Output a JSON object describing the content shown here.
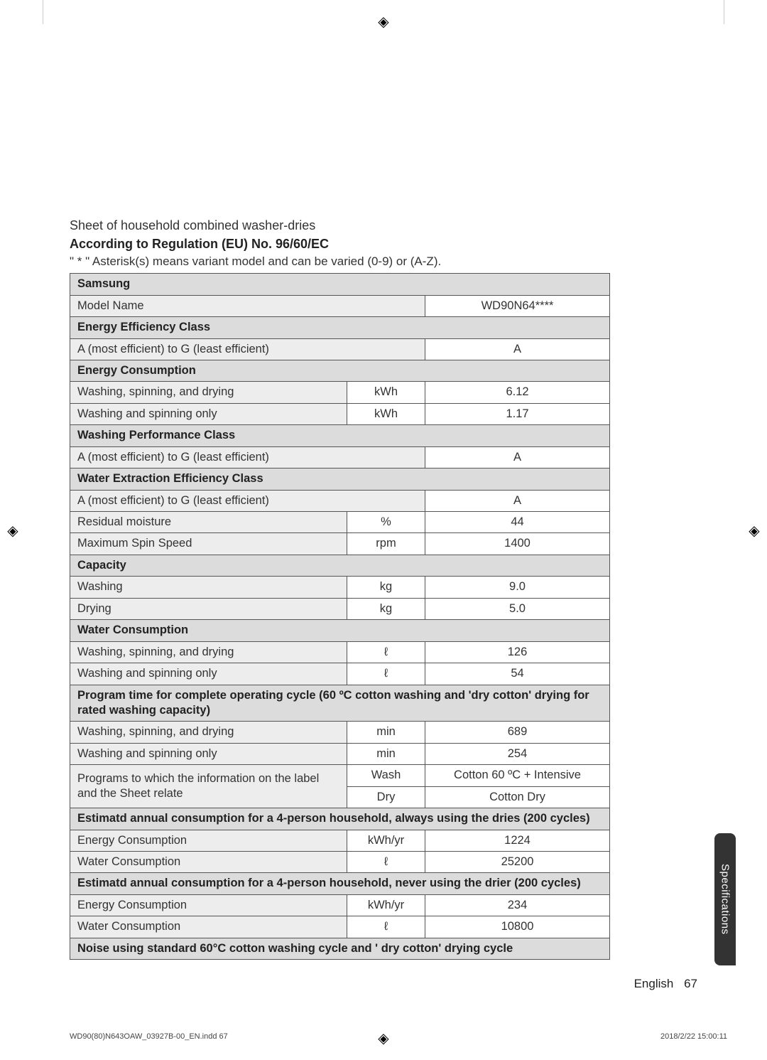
{
  "intro": {
    "line1": "Sheet of household combined washer-dries",
    "line2_bold": "According to Regulation (EU) No. 96/60/EC",
    "asterisk_note": "\" * \" Asterisk(s) means variant model and can be varied (0-9) or (A-Z)."
  },
  "table": {
    "brand": "Samsung",
    "rows": [
      {
        "type": "row2",
        "label": "Model Name",
        "value": "WD90N64****"
      },
      {
        "type": "section",
        "label": "Energy Efficiency Class"
      },
      {
        "type": "row2",
        "label": "A (most efficient) to G (least efficient)",
        "value": "A"
      },
      {
        "type": "section",
        "label": "Energy Consumption"
      },
      {
        "type": "row3",
        "label": "Washing, spinning, and drying",
        "unit": "kWh",
        "value": "6.12"
      },
      {
        "type": "row3",
        "label": "Washing and spinning only",
        "unit": "kWh",
        "value": "1.17"
      },
      {
        "type": "section",
        "label": "Washing Performance Class"
      },
      {
        "type": "row2",
        "label": "A (most efficient) to G (least efficient)",
        "value": "A"
      },
      {
        "type": "section",
        "label": "Water Extraction Efficiency Class"
      },
      {
        "type": "row2",
        "label": "A (most efficient) to G (least efficient)",
        "value": "A"
      },
      {
        "type": "row3",
        "label": "Residual moisture",
        "unit": "%",
        "value": "44"
      },
      {
        "type": "row3",
        "label": "Maximum Spin Speed",
        "unit": "rpm",
        "value": "1400"
      },
      {
        "type": "section",
        "label": "Capacity"
      },
      {
        "type": "row3",
        "label": "Washing",
        "unit": "kg",
        "value": "9.0"
      },
      {
        "type": "row3",
        "label": "Drying",
        "unit": "kg",
        "value": "5.0"
      },
      {
        "type": "section",
        "label": "Water Consumption"
      },
      {
        "type": "row3",
        "label": "Washing, spinning, and drying",
        "unit": "ℓ",
        "value": "126"
      },
      {
        "type": "row3",
        "label": "Washing and spinning only",
        "unit": "ℓ",
        "value": "54"
      },
      {
        "type": "section",
        "label": "Program time for complete operating cycle (60 ºC cotton washing and 'dry cotton' drying for rated washing capacity)"
      },
      {
        "type": "row3",
        "label": "Washing, spinning, and drying",
        "unit": "min",
        "value": "689"
      },
      {
        "type": "row3",
        "label": "Washing and spinning only",
        "unit": "min",
        "value": "254"
      },
      {
        "type": "row3_span_top",
        "label": "Programs to which the information on the label and the Sheet relate",
        "unit": "Wash",
        "value": "Cotton 60 ºC + Intensive"
      },
      {
        "type": "row3_span_bot",
        "unit": "Dry",
        "value": "Cotton Dry"
      },
      {
        "type": "section",
        "label": "Estimatd annual consumption for a 4-person household, always using the dries (200 cycles)"
      },
      {
        "type": "row3",
        "label": "Energy Consumption",
        "unit": "kWh/yr",
        "value": "1224"
      },
      {
        "type": "row3",
        "label": "Water Consumption",
        "unit": "ℓ",
        "value": "25200"
      },
      {
        "type": "section",
        "label": "Estimatd annual consumption for a 4-person household, never using the drier (200 cycles)"
      },
      {
        "type": "row3",
        "label": "Energy Consumption",
        "unit": "kWh/yr",
        "value": "234"
      },
      {
        "type": "row3",
        "label": "Water Consumption",
        "unit": "ℓ",
        "value": "10800"
      },
      {
        "type": "section",
        "label": "Noise using standard 60°C cotton washing cycle and ' dry cotton' drying cycle"
      }
    ]
  },
  "side_tab": "Specifications",
  "footer": {
    "lang": "English",
    "page": "67"
  },
  "print": {
    "file": "WD90(80)N643OAW_03927B-00_EN.indd   67",
    "date": "2018/2/22   15:00:11"
  },
  "colors": {
    "page_bg": "#ffffff",
    "text": "#333333",
    "header_bg": "#dcdcdc",
    "label_bg": "#ededed",
    "border": "#555555",
    "tab_bg": "#333333",
    "tab_text": "#ffffff",
    "crop": "#cccccc"
  }
}
